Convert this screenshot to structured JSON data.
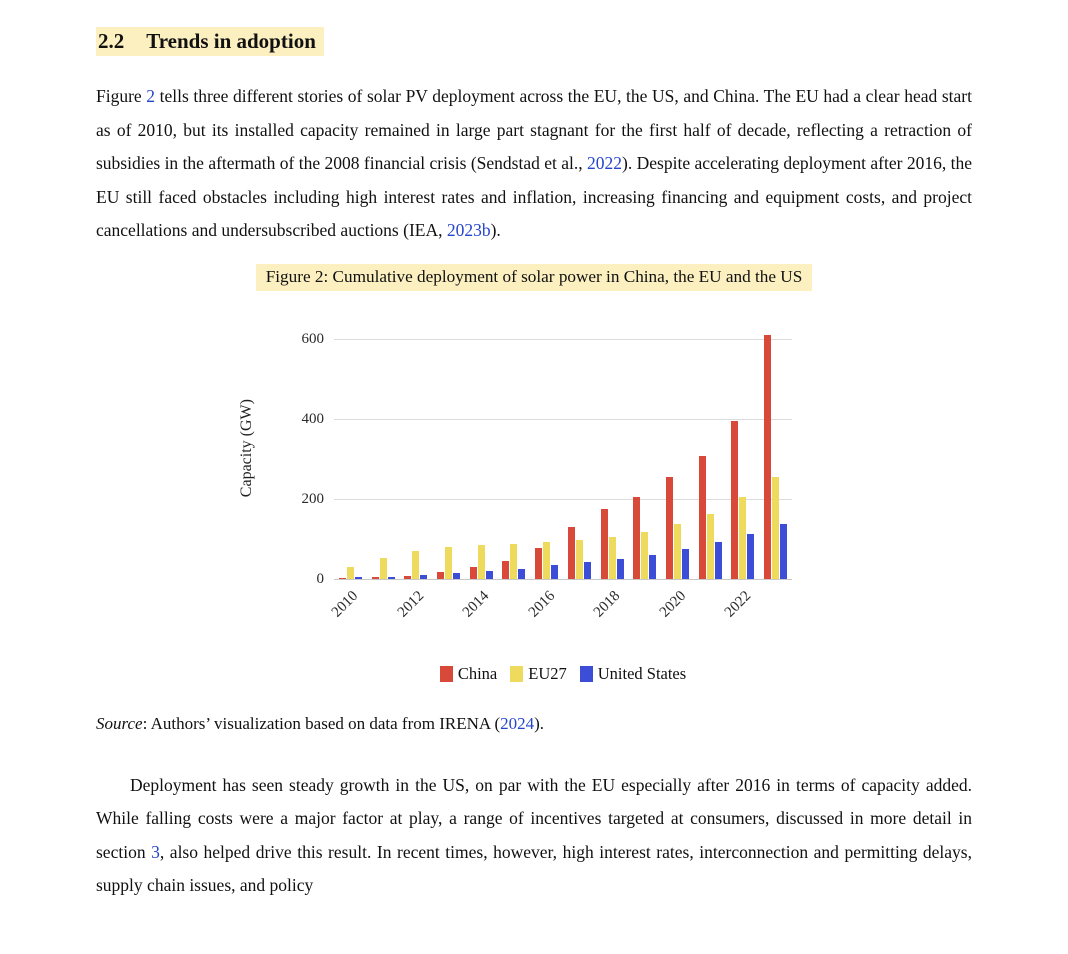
{
  "colors": {
    "highlight": "#fcefc0",
    "link": "#2545cc",
    "text": "#111111"
  },
  "section": {
    "number": "2.2",
    "title": "Trends in adoption"
  },
  "paragraph1": {
    "segments": [
      {
        "text": "Figure "
      },
      {
        "text": "2",
        "link": true
      },
      {
        "text": " tells three different stories of solar PV deployment across the EU, the US, and China. The EU had a clear head start as of 2010, but its installed capacity remained in large part stagnant for the first half of decade, reflecting a retraction of subsidies in the aftermath of the 2008 financial crisis (Sendstad et al., "
      },
      {
        "text": "2022",
        "link": true
      },
      {
        "text": "). Despite accelerating deployment after 2016, the EU still faced obstacles including high interest rates and inflation, increasing financing and equipment costs, and project cancellations and undersubscribed auctions (IEA, "
      },
      {
        "text": "2023b",
        "link": true
      },
      {
        "text": ")."
      }
    ]
  },
  "figure": {
    "caption": "Figure 2: Cumulative deployment of solar power in China, the EU and the US",
    "source_segments": [
      {
        "text": "Source",
        "italic": true
      },
      {
        "text": ": Authors’ visualization based on data from IRENA ("
      },
      {
        "text": "2024",
        "link": true
      },
      {
        "text": ")."
      }
    ]
  },
  "chart_data": {
    "type": "bar",
    "title": "Cumulative deployment of solar power in China, the EU and the US",
    "xlabel": "",
    "ylabel": "Capacity (GW)",
    "ylim": [
      0,
      600
    ],
    "yticks": [
      0,
      200,
      400,
      600
    ],
    "grid": true,
    "legend_position": "bottom",
    "categories": [
      2010,
      2011,
      2012,
      2013,
      2014,
      2015,
      2016,
      2017,
      2018,
      2019,
      2020,
      2021,
      2022,
      2023
    ],
    "xtick_labels": [
      "2010",
      "2012",
      "2014",
      "2016",
      "2018",
      "2020",
      "2022"
    ],
    "series": [
      {
        "name": "China",
        "color": "#d9493a",
        "values": [
          1,
          3,
          7,
          17,
          28,
          43,
          77,
          130,
          175,
          204,
          253,
          307,
          393,
          610
        ]
      },
      {
        "name": "EU27",
        "color": "#eedb5e",
        "values": [
          30,
          52,
          69,
          78,
          83,
          87,
          91,
          96,
          104,
          117,
          136,
          162,
          203,
          253
        ]
      },
      {
        "name": "United States",
        "color": "#3c4ed8",
        "values": [
          3,
          5,
          8,
          13,
          18,
          23,
          33,
          41,
          50,
          59,
          74,
          91,
          111,
          137
        ]
      }
    ]
  },
  "paragraph2": {
    "segments": [
      {
        "text": "Deployment has seen steady growth in the US, on par with the EU especially after 2016 in terms of capacity added. While falling costs were a major factor at play, a range of incentives targeted at consumers, discussed in more detail in section "
      },
      {
        "text": "3",
        "link": true
      },
      {
        "text": ", also helped drive this result. In recent times, however, high interest rates, interconnection and permitting delays, supply chain issues, and policy"
      }
    ]
  }
}
